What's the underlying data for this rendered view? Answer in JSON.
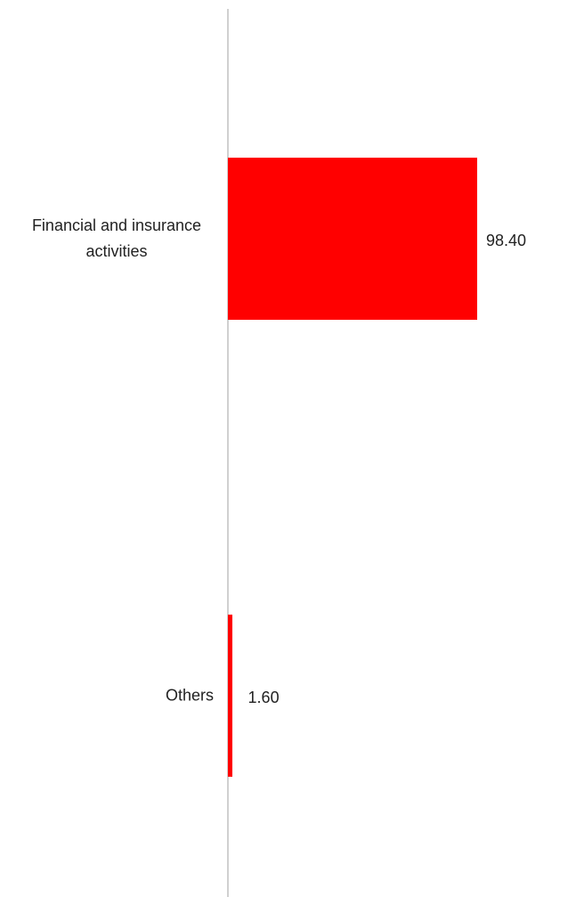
{
  "chart_data": {
    "type": "bar",
    "orientation": "horizontal",
    "categories": [
      "Financial and insurance activities",
      "Others"
    ],
    "values": [
      98.4,
      1.6
    ],
    "value_labels": [
      "98.40",
      "1.60"
    ],
    "color": "#ff0000",
    "xlim": [
      0,
      100
    ]
  }
}
